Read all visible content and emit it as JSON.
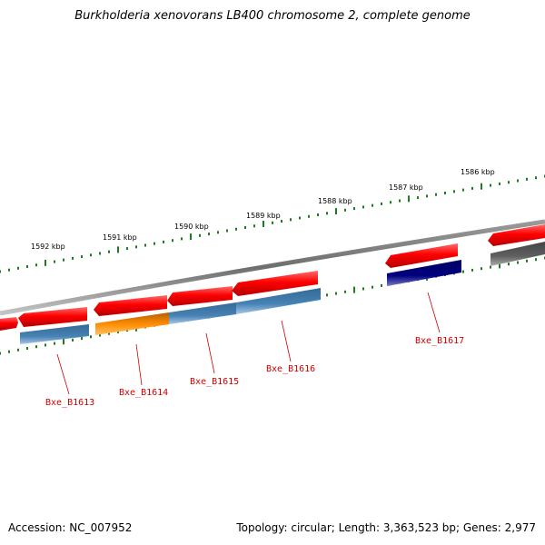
{
  "title": "Burkholderia xenovorans LB400 chromosome 2, complete genome",
  "footer": {
    "accession": "Accession: NC_007952",
    "summary": "Topology: circular; Length: 3,363,523 bp; Genes: 2,977"
  },
  "colors": {
    "backbone": "#808080",
    "ticks": "#1a7f1a",
    "gene_forward": "#ff0000",
    "cds_blue": "#4682b4",
    "cds_orange": "#ff8c00",
    "cds_navy": "#000080",
    "gray_feature": "#606060",
    "label_red": "#cc0000"
  },
  "scale": {
    "kbp_labels": [
      "1586 kbp",
      "1587 kbp",
      "1588 kbp",
      "1589 kbp",
      "1590 kbp",
      "1591 kbp",
      "1592 kbp"
    ]
  },
  "genes": [
    {
      "label": "Bxe_B1613",
      "cds_color": "blue"
    },
    {
      "label": "Bxe_B1614",
      "cds_color": "orange"
    },
    {
      "label": "Bxe_B1615",
      "cds_color": "blue"
    },
    {
      "label": "Bxe_B1616",
      "cds_color": "blue"
    },
    {
      "label": "Bxe_B1617",
      "cds_color": "navy"
    }
  ]
}
